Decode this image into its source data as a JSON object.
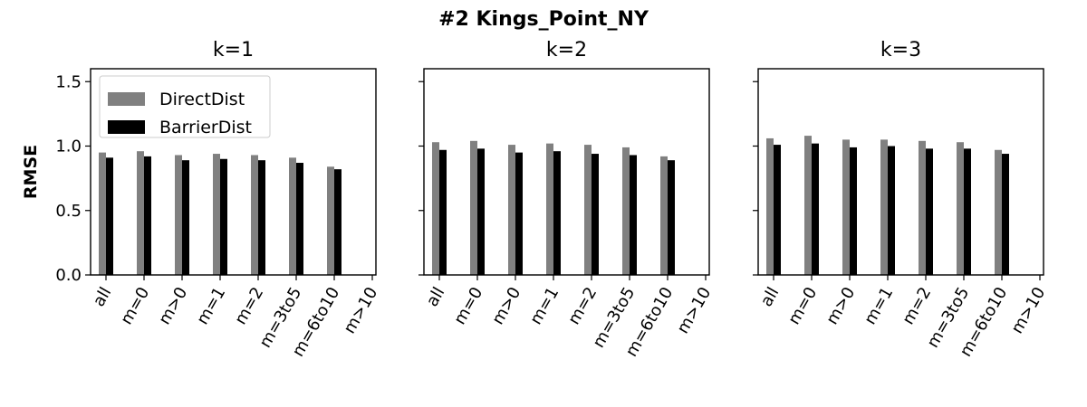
{
  "figure": {
    "title": "#2 Kings_Point_NY",
    "ylabel": "RMSE"
  },
  "chart_data": [
    {
      "type": "bar",
      "title": "k=1",
      "ylabel": "RMSE",
      "ylim": [
        0,
        1.6
      ],
      "yticks": [
        "0.0",
        "0.5",
        "1.0",
        "1.5"
      ],
      "categories": [
        "all",
        "m=0",
        "m>0",
        "m=1",
        "m=2",
        "m=3to5",
        "m=6to10",
        "m>10"
      ],
      "series": [
        {
          "name": "DirectDist",
          "color": "#808080",
          "values": [
            0.95,
            0.96,
            0.93,
            0.94,
            0.93,
            0.91,
            0.84,
            null
          ]
        },
        {
          "name": "BarrierDist",
          "color": "#000000",
          "values": [
            0.91,
            0.92,
            0.89,
            0.9,
            0.89,
            0.87,
            0.82,
            null
          ]
        }
      ],
      "legend": "top-left"
    },
    {
      "type": "bar",
      "title": "k=2",
      "ylim": [
        0,
        1.6
      ],
      "categories": [
        "all",
        "m=0",
        "m>0",
        "m=1",
        "m=2",
        "m=3to5",
        "m=6to10",
        "m>10"
      ],
      "series": [
        {
          "name": "DirectDist",
          "color": "#808080",
          "values": [
            1.03,
            1.04,
            1.01,
            1.02,
            1.01,
            0.99,
            0.92,
            null
          ]
        },
        {
          "name": "BarrierDist",
          "color": "#000000",
          "values": [
            0.97,
            0.98,
            0.95,
            0.96,
            0.94,
            0.93,
            0.89,
            null
          ]
        }
      ]
    },
    {
      "type": "bar",
      "title": "k=3",
      "ylim": [
        0,
        1.6
      ],
      "categories": [
        "all",
        "m=0",
        "m>0",
        "m=1",
        "m=2",
        "m=3to5",
        "m=6to10",
        "m>10"
      ],
      "series": [
        {
          "name": "DirectDist",
          "color": "#808080",
          "values": [
            1.06,
            1.08,
            1.05,
            1.05,
            1.04,
            1.03,
            0.97,
            null
          ]
        },
        {
          "name": "BarrierDist",
          "color": "#000000",
          "values": [
            1.01,
            1.02,
            0.99,
            1.0,
            0.98,
            0.98,
            0.94,
            null
          ]
        }
      ]
    }
  ]
}
